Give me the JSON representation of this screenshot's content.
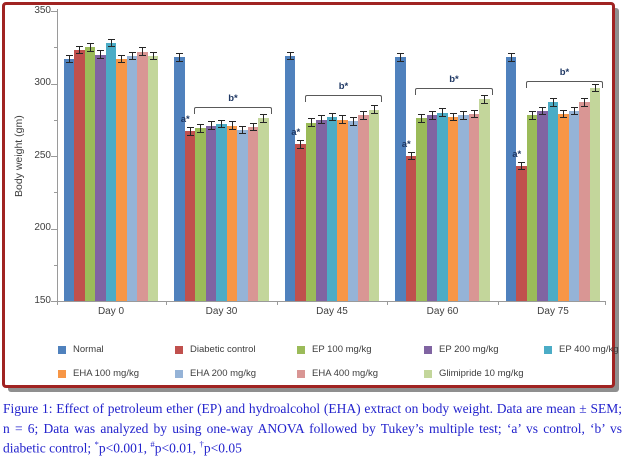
{
  "figure": {
    "border_color": "#a02322",
    "shadow_color": "#8f8f8f"
  },
  "chart_data": {
    "type": "bar",
    "title": "",
    "xlabel": "",
    "ylabel": "Body weight (gm)",
    "ylim": [
      150,
      350
    ],
    "y_major_ticks": [
      350,
      300,
      250,
      200,
      150
    ],
    "y_minor_ticks": [
      325,
      275,
      225,
      175
    ],
    "grid": false,
    "legend_position": "bottom",
    "categories": [
      "Day 0",
      "Day 30",
      "Day 45",
      "Day 60",
      "Day 75"
    ],
    "sem_approx": 3,
    "series": [
      {
        "name": "Normal",
        "color": "#4f81bd",
        "values": [
          317,
          318,
          319,
          318,
          318
        ]
      },
      {
        "name": "Diabetic control",
        "color": "#c0504d",
        "values": [
          323,
          267,
          258,
          250,
          243
        ]
      },
      {
        "name": "EP 100 mg/kg",
        "color": "#9bbb59",
        "values": [
          325,
          269,
          273,
          276,
          278
        ]
      },
      {
        "name": "EP 200 mg/kg",
        "color": "#8064a2",
        "values": [
          320,
          271,
          275,
          278,
          281
        ]
      },
      {
        "name": "EP 400 mg/kg",
        "color": "#4bacc6",
        "values": [
          328,
          272,
          277,
          280,
          287
        ]
      },
      {
        "name": "EHA 100 mg/kg",
        "color": "#f79646",
        "values": [
          317,
          271,
          275,
          277,
          279
        ]
      },
      {
        "name": "EHA 200 mg/kg",
        "color": "#95b3d7",
        "values": [
          319,
          268,
          274,
          278,
          281
        ]
      },
      {
        "name": "EHA 400 mg/kg",
        "color": "#d99694",
        "values": [
          322,
          270,
          278,
          279,
          287
        ]
      },
      {
        "name": "Glimipride 10 mg/kg",
        "color": "#c3d69b",
        "values": [
          319,
          276,
          282,
          289,
          297
        ]
      }
    ],
    "annotations": {
      "a_label": "a*",
      "b_label": "b*",
      "a_series": "Diabetic control",
      "a_category_indices": [
        1,
        2,
        3,
        4
      ],
      "bracket_from_series_index": 2,
      "bracket_to_series_index": 8,
      "bracket_category_indices": [
        1,
        2,
        3,
        4
      ],
      "bracket_top_values": [
        284,
        292,
        297,
        302
      ]
    }
  },
  "caption": {
    "seg1": "Figure 1: Effect of petroleum ether (EP) and hydroalcohol (EHA) extract on body weight. Data are mean ± SEM; n = 6; Data was analyzed by using one-way ANOVA followed by Tukey’s multiple test; ‘a’ vs control, ‘b’ vs diabetic control; ",
    "sup1": "*",
    "seg2": "p<0.001, ",
    "sup2": "#",
    "seg3": "p<0.01, ",
    "sup3": "†",
    "seg4": "p<0.05"
  }
}
